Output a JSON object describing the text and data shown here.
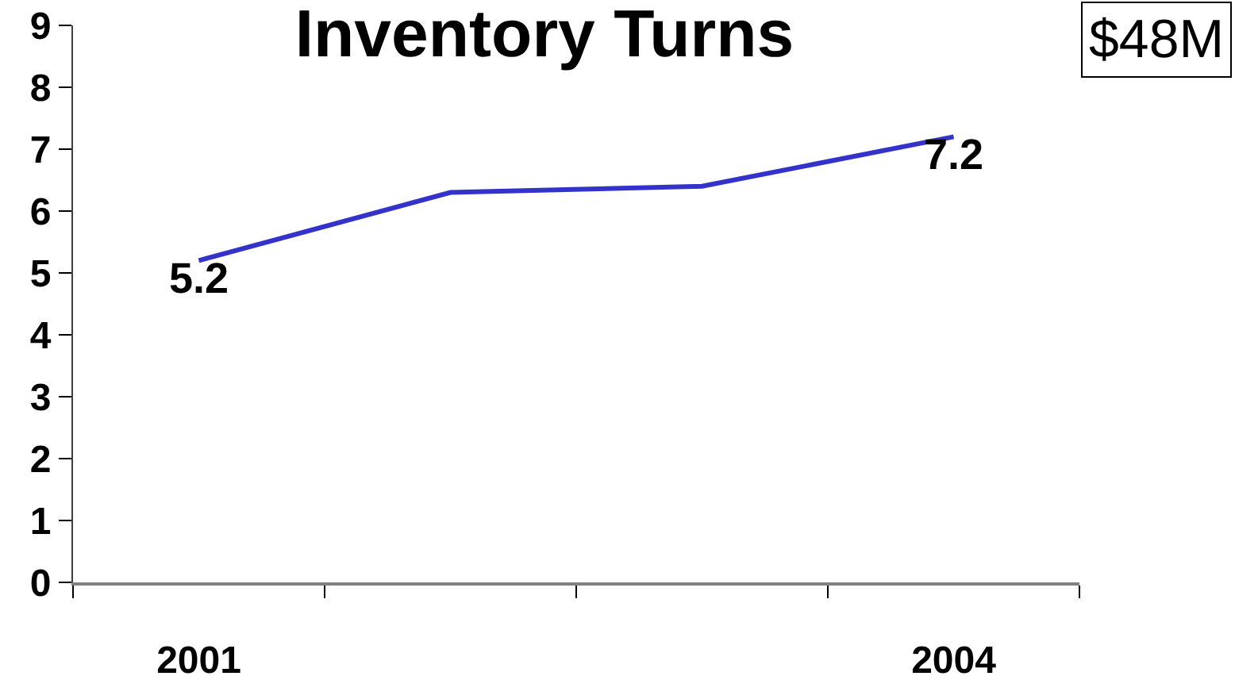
{
  "chart_data": {
    "type": "line",
    "title": "Inventory Turns",
    "categories": [
      "2001",
      null,
      null,
      "2004"
    ],
    "values": [
      5.2,
      6.3,
      6.4,
      7.2
    ],
    "color": "#3333cc",
    "value_labels": [
      "5.2",
      null,
      null,
      "7.2"
    ],
    "ylim": [
      0,
      9
    ],
    "yticks": [
      0,
      1,
      2,
      3,
      4,
      5,
      6,
      7,
      8,
      9
    ],
    "annotations": [
      "$48M"
    ]
  }
}
